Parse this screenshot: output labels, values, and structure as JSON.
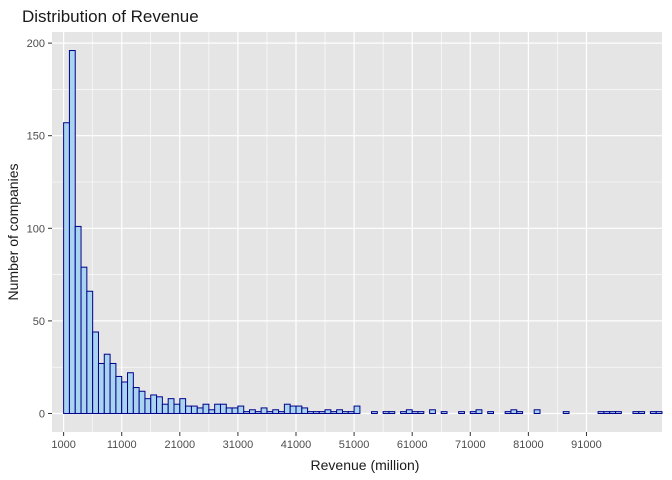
{
  "chart_data": {
    "type": "bar",
    "title": "Distribution of Revenue",
    "xlabel": "Revenue (million)",
    "ylabel": "Number of companies",
    "xlim": [
      -1000,
      104000
    ],
    "ylim": [
      -10,
      206
    ],
    "bin_width": 1000,
    "bins_start": 1000,
    "x_ticks": [
      1000,
      11000,
      21000,
      31000,
      41000,
      51000,
      61000,
      71000,
      81000,
      91000
    ],
    "y_ticks": [
      0,
      50,
      100,
      150,
      200
    ],
    "grid": true,
    "legend": "none",
    "colors": {
      "panel": "#e5e5e5",
      "grid": "#ffffff",
      "bar_fill": "#a8d4f0",
      "bar_stroke": "#00008b"
    },
    "values": [
      157,
      196,
      101,
      79,
      66,
      44,
      27,
      32,
      27,
      20,
      17,
      22,
      14,
      12,
      8,
      10,
      9,
      5,
      8,
      5,
      8,
      4,
      4,
      3,
      5,
      2,
      5,
      5,
      3,
      3,
      4,
      1,
      2,
      1,
      3,
      1,
      2,
      1,
      5,
      4,
      4,
      3,
      1,
      1,
      1,
      2,
      1,
      2,
      1,
      1,
      4,
      0,
      0,
      1,
      0,
      1,
      1,
      0,
      1,
      2,
      1,
      1,
      0,
      2,
      0,
      1,
      0,
      0,
      1,
      0,
      1,
      2,
      0,
      1,
      0,
      0,
      1,
      2,
      1,
      0,
      0,
      2,
      0,
      0,
      0,
      0,
      1,
      0,
      0,
      0,
      0,
      0,
      1,
      1,
      1,
      1,
      0,
      0,
      1,
      1,
      0,
      1,
      1,
      0,
      0
    ]
  }
}
